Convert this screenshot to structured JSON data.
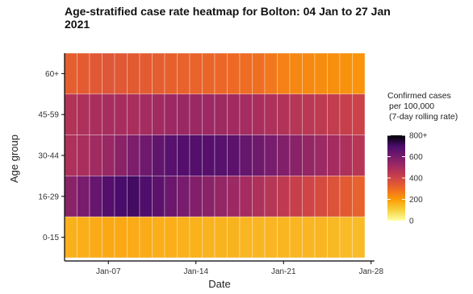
{
  "chart_data": {
    "type": "heatmap",
    "title": "Age-stratified case rate heatmap for Bolton: 04 Jan to 27 Jan 2021",
    "title_lines": [
      "Age-stratified case rate heatmap for Bolton: 04 Jan to 27 Jan",
      "2021"
    ],
    "xlabel": "Date",
    "ylabel": "Age group",
    "x_dates": [
      "04 Jan",
      "05 Jan",
      "06 Jan",
      "07 Jan",
      "08 Jan",
      "09 Jan",
      "10 Jan",
      "11 Jan",
      "12 Jan",
      "13 Jan",
      "14 Jan",
      "15 Jan",
      "16 Jan",
      "17 Jan",
      "18 Jan",
      "19 Jan",
      "20 Jan",
      "21 Jan",
      "22 Jan",
      "23 Jan",
      "24 Jan",
      "25 Jan",
      "26 Jan",
      "27 Jan"
    ],
    "x_ticks": [
      {
        "label": "Jan-07",
        "day": 7
      },
      {
        "label": "Jan-14",
        "day": 14
      },
      {
        "label": "Jan-21",
        "day": 21
      },
      {
        "label": "Jan-28",
        "day": 28
      }
    ],
    "age_groups": [
      "0-15",
      "16-29",
      "30-44",
      "45-59",
      "60+"
    ],
    "values": {
      "60+": [
        330,
        335,
        345,
        350,
        345,
        340,
        335,
        330,
        325,
        320,
        315,
        310,
        305,
        300,
        295,
        290,
        270,
        250,
        240,
        235,
        230,
        225,
        220,
        215
      ],
      "45-59": [
        470,
        480,
        490,
        495,
        495,
        490,
        500,
        510,
        520,
        525,
        525,
        520,
        515,
        510,
        500,
        490,
        480,
        470,
        460,
        450,
        440,
        430,
        420,
        410
      ],
      "30-44": [
        480,
        490,
        510,
        530,
        560,
        590,
        620,
        650,
        670,
        680,
        680,
        675,
        670,
        660,
        640,
        620,
        600,
        580,
        560,
        540,
        520,
        500,
        480,
        460
      ],
      "16-29": [
        560,
        600,
        640,
        680,
        700,
        710,
        690,
        660,
        630,
        600,
        580,
        560,
        540,
        520,
        500,
        480,
        460,
        440,
        420,
        400,
        380,
        360,
        340,
        320
      ],
      "0-15": [
        160,
        165,
        170,
        175,
        175,
        170,
        170,
        165,
        165,
        160,
        160,
        155,
        155,
        155,
        150,
        150,
        150,
        150,
        150,
        150,
        150,
        145,
        140,
        140
      ]
    },
    "legend": {
      "title_lines": [
        "Confirmed cases",
        "per 100,000",
        "(7-day rolling rate)"
      ],
      "ticks": [
        "800+",
        "600",
        "400",
        "200",
        "0"
      ],
      "min": 0,
      "max": 800
    },
    "colorscale": "inferno"
  }
}
